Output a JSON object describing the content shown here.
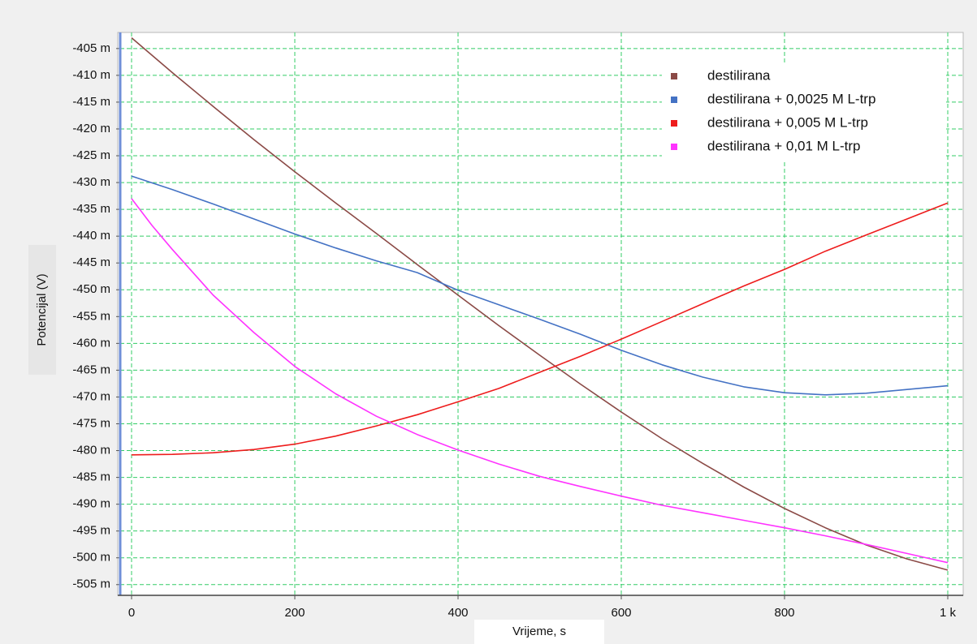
{
  "chart_data": {
    "type": "line",
    "xlabel": "Vrijeme, s",
    "ylabel": "Potencijal  (V)",
    "xlim": [
      0,
      1000
    ],
    "ylim": [
      -507,
      -402
    ],
    "x_ticks": [
      {
        "value": 0,
        "label": "0"
      },
      {
        "value": 200,
        "label": "200"
      },
      {
        "value": 400,
        "label": "400"
      },
      {
        "value": 600,
        "label": "600"
      },
      {
        "value": 800,
        "label": "800"
      },
      {
        "value": 1000,
        "label": "1 k"
      }
    ],
    "y_ticks": [
      {
        "value": -405,
        "label": "-405 m"
      },
      {
        "value": -410,
        "label": "-410 m"
      },
      {
        "value": -415,
        "label": "-415 m"
      },
      {
        "value": -420,
        "label": "-420 m"
      },
      {
        "value": -425,
        "label": "-425 m"
      },
      {
        "value": -430,
        "label": "-430 m"
      },
      {
        "value": -435,
        "label": "-435 m"
      },
      {
        "value": -440,
        "label": "-440 m"
      },
      {
        "value": -445,
        "label": "-445 m"
      },
      {
        "value": -450,
        "label": "-450 m"
      },
      {
        "value": -455,
        "label": "-455 m"
      },
      {
        "value": -460,
        "label": "-460 m"
      },
      {
        "value": -465,
        "label": "-465 m"
      },
      {
        "value": -470,
        "label": "-470 m"
      },
      {
        "value": -475,
        "label": "-475 m"
      },
      {
        "value": -480,
        "label": "-480 m"
      },
      {
        "value": -485,
        "label": "-485 m"
      },
      {
        "value": -490,
        "label": "-490 m"
      },
      {
        "value": -495,
        "label": "-495 m"
      },
      {
        "value": -500,
        "label": "-500 m"
      },
      {
        "value": -505,
        "label": "-505 m"
      }
    ],
    "grid": true,
    "legend_position": "top-right",
    "series": [
      {
        "name": "destilirana",
        "color": "#8b4a46",
        "x": [
          0,
          50,
          100,
          150,
          200,
          250,
          300,
          350,
          400,
          450,
          500,
          550,
          600,
          650,
          700,
          750,
          800,
          850,
          900,
          950,
          1000
        ],
        "y": [
          -403,
          -409.5,
          -415.8,
          -422,
          -428,
          -433.8,
          -439.5,
          -445.3,
          -451,
          -456.7,
          -462.2,
          -467.6,
          -472.8,
          -477.8,
          -482.4,
          -486.8,
          -490.8,
          -494.4,
          -497.6,
          -500.2,
          -502.3
        ]
      },
      {
        "name": "destilirana + 0,0025 M L-trp",
        "color": "#4472c4",
        "x": [
          0,
          50,
          100,
          150,
          200,
          250,
          300,
          350,
          400,
          450,
          500,
          550,
          600,
          650,
          700,
          750,
          800,
          850,
          900,
          950,
          1000
        ],
        "y": [
          -428.8,
          -431.3,
          -434,
          -436.8,
          -439.6,
          -442.2,
          -444.6,
          -446.8,
          -450.1,
          -452.8,
          -455.5,
          -458.3,
          -461.3,
          -464,
          -466.3,
          -468.1,
          -469.2,
          -469.6,
          -469.3,
          -468.6,
          -467.9
        ]
      },
      {
        "name": "destilirana + 0,005 M L-trp",
        "color": "#ee1c1c",
        "x": [
          0,
          50,
          100,
          150,
          200,
          250,
          300,
          350,
          400,
          450,
          500,
          550,
          600,
          650,
          700,
          750,
          800,
          850,
          900,
          950,
          1000
        ],
        "y": [
          -480.8,
          -480.7,
          -480.4,
          -479.8,
          -478.8,
          -477.3,
          -475.4,
          -473.3,
          -470.9,
          -468.4,
          -465.4,
          -462.4,
          -459.2,
          -455.9,
          -452.6,
          -449.3,
          -446.2,
          -442.8,
          -439.8,
          -436.8,
          -433.8
        ]
      },
      {
        "name": "destilirana + 0,01 M L-trp",
        "color": "#ff33ff",
        "x": [
          0,
          25,
          50,
          100,
          150,
          200,
          250,
          300,
          350,
          400,
          450,
          500,
          550,
          600,
          650,
          700,
          750,
          800,
          850,
          900,
          950,
          1000
        ],
        "y": [
          -433,
          -438,
          -442.5,
          -451,
          -458,
          -464.3,
          -469.4,
          -473.6,
          -477,
          -479.9,
          -482.5,
          -484.8,
          -486.7,
          -488.5,
          -490.2,
          -491.6,
          -493,
          -494.4,
          -495.9,
          -497.5,
          -499.2,
          -500.9
        ]
      }
    ]
  }
}
